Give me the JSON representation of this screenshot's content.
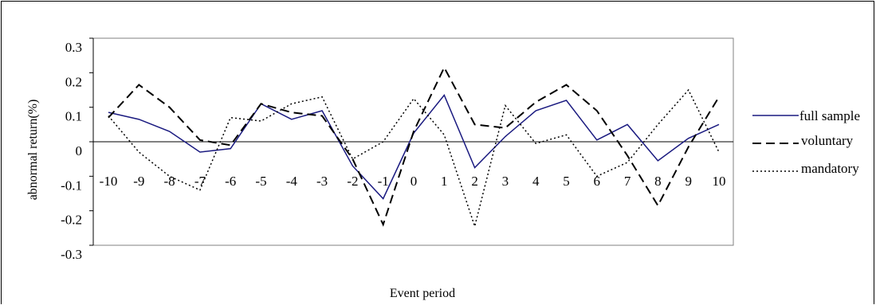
{
  "chart_data": {
    "type": "line",
    "xlabel": "Event period",
    "ylabel": "abnormal return(%)",
    "ylim": [
      -0.3,
      0.3
    ],
    "yticks": [
      "0.3",
      "0.2",
      "0.1",
      "0",
      "-0.1",
      "-0.2",
      "-0.3"
    ],
    "yticks_values": [
      0.3,
      0.2,
      0.1,
      0,
      -0.1,
      -0.2,
      -0.3
    ],
    "categories": [
      "-10",
      "-9",
      "-8",
      "-7",
      "-6",
      "-5",
      "-4",
      "-3",
      "-2",
      "-1",
      "0",
      "1",
      "2",
      "3",
      "4",
      "5",
      "6",
      "7",
      "8",
      "9",
      "10"
    ],
    "legend_position": "right",
    "grid": false,
    "series": [
      {
        "name": "full sample",
        "color": "#1a1a80",
        "dash": "solid",
        "values": [
          0.085,
          0.065,
          0.03,
          -0.03,
          -0.02,
          0.11,
          0.065,
          0.09,
          -0.07,
          -0.165,
          0.025,
          0.135,
          -0.075,
          0.015,
          0.09,
          0.12,
          0.005,
          0.05,
          -0.055,
          0.01,
          0.05
        ]
      },
      {
        "name": "voluntary",
        "color": "#000000",
        "dash": "long",
        "values": [
          0.07,
          0.165,
          0.1,
          0.005,
          -0.01,
          0.11,
          0.085,
          0.075,
          -0.05,
          -0.24,
          0.03,
          0.215,
          0.05,
          0.04,
          0.115,
          0.165,
          0.09,
          -0.04,
          -0.185,
          -0.015,
          0.13
        ]
      },
      {
        "name": "mandatory",
        "color": "#000000",
        "dash": "dotted",
        "values": [
          0.075,
          -0.03,
          -0.1,
          -0.14,
          0.07,
          0.06,
          0.11,
          0.13,
          -0.05,
          0.0,
          0.125,
          0.02,
          -0.245,
          0.105,
          -0.005,
          0.02,
          -0.1,
          -0.06,
          0.05,
          0.15,
          -0.03
        ]
      }
    ]
  }
}
